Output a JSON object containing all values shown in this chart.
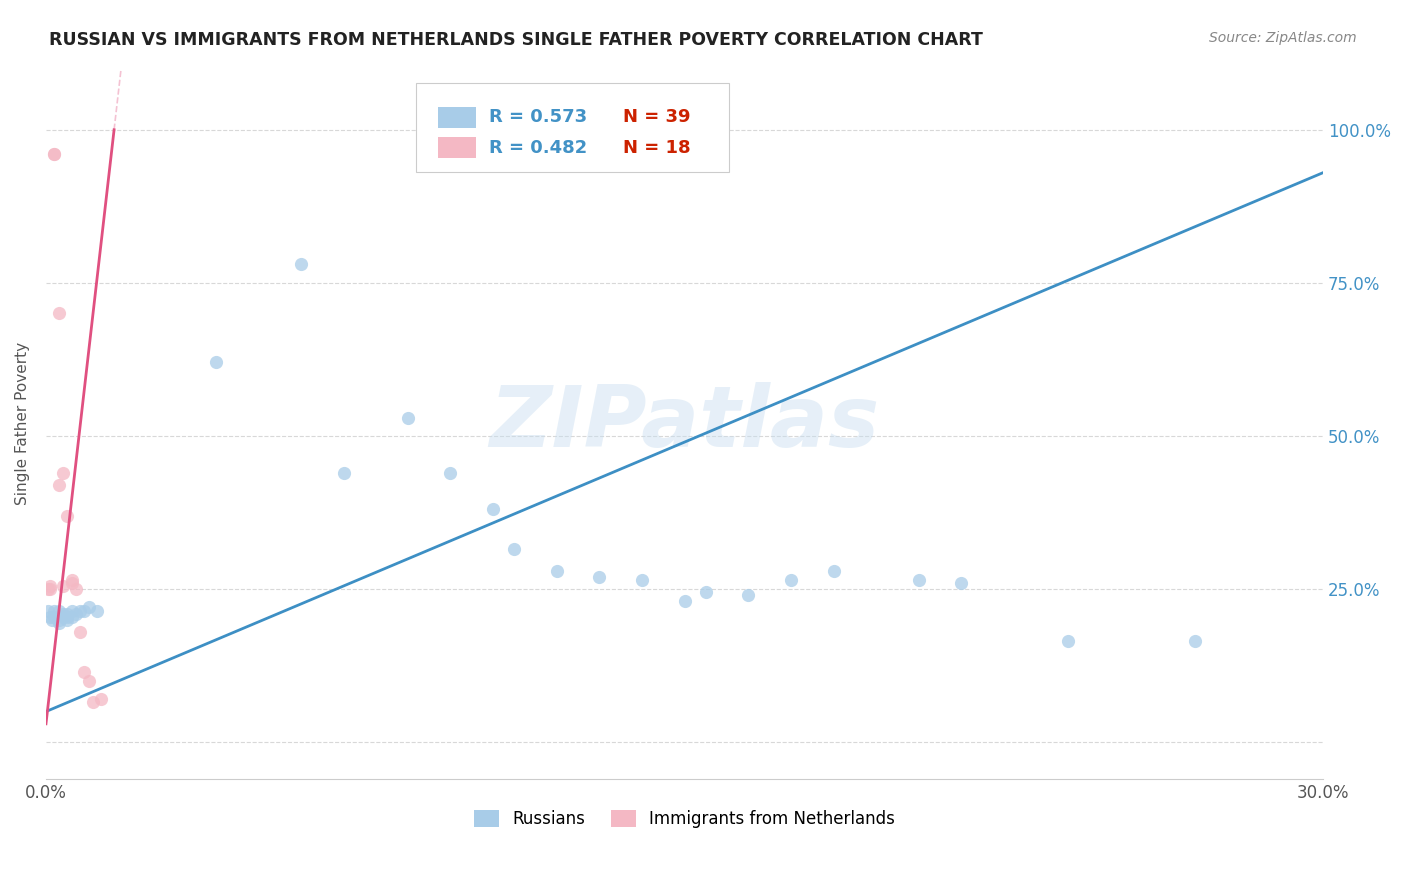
{
  "title": "RUSSIAN VS IMMIGRANTS FROM NETHERLANDS SINGLE FATHER POVERTY CORRELATION CHART",
  "source": "Source: ZipAtlas.com",
  "ylabel": "Single Father Poverty",
  "ytick_labels": [
    "",
    "25.0%",
    "50.0%",
    "75.0%",
    "100.0%"
  ],
  "ytick_values": [
    0.0,
    0.25,
    0.5,
    0.75,
    1.0
  ],
  "xlim": [
    0.0,
    0.3
  ],
  "ylim": [
    -0.06,
    1.1
  ],
  "legend_russians": "Russians",
  "legend_immigrants": "Immigrants from Netherlands",
  "r_russians": "R = 0.573",
  "n_russians": "N = 39",
  "r_immigrants": "R = 0.482",
  "n_immigrants": "N = 18",
  "color_russians": "#a8cce8",
  "color_immigrants": "#f4b8c4",
  "color_line_russians": "#3d8fc4",
  "color_line_immigrants": "#e05080",
  "color_title": "#222222",
  "color_axis_right": "#4292c6",
  "color_n": "#cc2200",
  "watermark": "ZIPatlas",
  "russians_line_x0": 0.0,
  "russians_line_y0": 0.05,
  "russians_line_x1": 0.3,
  "russians_line_y1": 0.93,
  "immigrants_line_x0": 0.0,
  "immigrants_line_y0": 0.03,
  "immigrants_line_x1": 0.016,
  "immigrants_line_y1": 1.0,
  "russians_x": [
    0.0005,
    0.001,
    0.0015,
    0.002,
    0.002,
    0.003,
    0.003,
    0.003,
    0.004,
    0.004,
    0.005,
    0.005,
    0.005,
    0.006,
    0.006,
    0.007,
    0.008,
    0.009,
    0.01,
    0.012,
    0.04,
    0.06,
    0.07,
    0.085,
    0.095,
    0.105,
    0.11,
    0.12,
    0.13,
    0.14,
    0.15,
    0.155,
    0.165,
    0.175,
    0.185,
    0.205,
    0.215,
    0.24,
    0.27
  ],
  "russians_y": [
    0.215,
    0.205,
    0.2,
    0.215,
    0.205,
    0.215,
    0.2,
    0.195,
    0.21,
    0.205,
    0.205,
    0.21,
    0.2,
    0.215,
    0.205,
    0.21,
    0.215,
    0.215,
    0.22,
    0.215,
    0.62,
    0.78,
    0.44,
    0.53,
    0.44,
    0.38,
    0.315,
    0.28,
    0.27,
    0.265,
    0.23,
    0.245,
    0.24,
    0.265,
    0.28,
    0.265,
    0.26,
    0.165,
    0.165
  ],
  "immigrants_x": [
    0.0005,
    0.001,
    0.001,
    0.002,
    0.002,
    0.003,
    0.003,
    0.004,
    0.004,
    0.005,
    0.006,
    0.006,
    0.007,
    0.008,
    0.009,
    0.01,
    0.011,
    0.013
  ],
  "immigrants_y": [
    0.25,
    0.255,
    0.25,
    0.96,
    0.96,
    0.7,
    0.42,
    0.44,
    0.255,
    0.37,
    0.26,
    0.265,
    0.25,
    0.18,
    0.115,
    0.1,
    0.065,
    0.07
  ]
}
